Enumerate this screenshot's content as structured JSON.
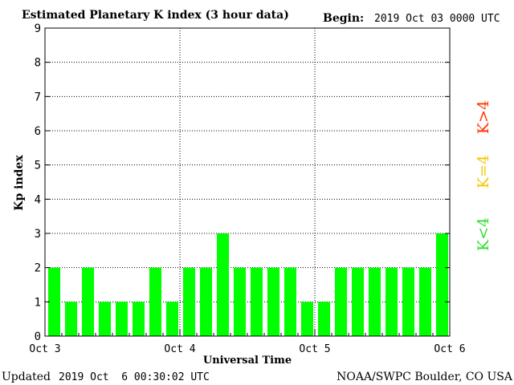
{
  "chart_data": {
    "type": "bar",
    "title": "Estimated Planetary K index (3 hour data)",
    "begin_label": "Begin:",
    "begin_value": "2019 Oct 03 0000 UTC",
    "xlabel": "Universal Time",
    "ylabel": "Kp index",
    "ylim": [
      0,
      9
    ],
    "yticks": [
      "0",
      "1",
      "2",
      "3",
      "4",
      "5",
      "6",
      "7",
      "8",
      "9"
    ],
    "xtick_labels": [
      "Oct 3",
      "Oct 4",
      "Oct 5",
      "Oct 6"
    ],
    "values": [
      2,
      1,
      2,
      1,
      1,
      1,
      2,
      1,
      2,
      2,
      3,
      2,
      2,
      2,
      2,
      1,
      1,
      2,
      2,
      2,
      2,
      2,
      2,
      3
    ],
    "bar_color": "#00ff00",
    "grid": "dotted, at each day and integer Kp",
    "legend": [
      {
        "label": "K<4",
        "color": "#33dd33"
      },
      {
        "label": "K=4",
        "color": "#f5c800"
      },
      {
        "label": "K>4",
        "color": "#ff3300"
      }
    ]
  },
  "footer": {
    "updated_label": "Updated",
    "updated_value": "2019 Oct  6 00:30:02 UTC",
    "source": "NOAA/SWPC Boulder, CO USA"
  }
}
